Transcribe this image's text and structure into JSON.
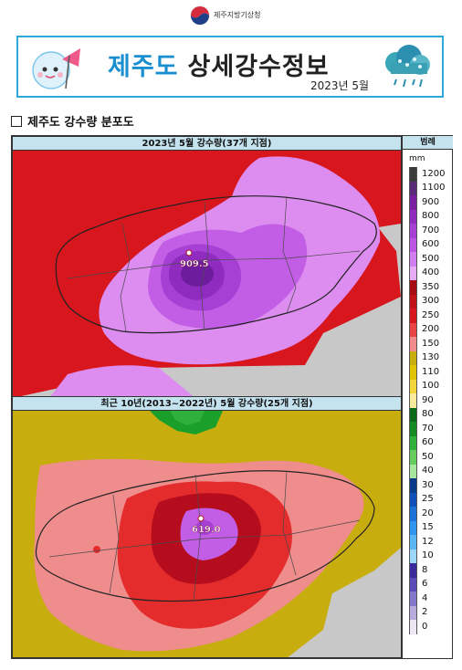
{
  "header": {
    "agency": "제주지방기상청"
  },
  "banner": {
    "title_highlight": "제주도",
    "title_rest": "상세강수정보",
    "date": "2023년 5월"
  },
  "section": {
    "title": "제주도 강수량 분포도"
  },
  "map_current": {
    "title": "2023년 5월 강수량(37개 지점)",
    "max_label": "909.5",
    "bands": [
      {
        "name": "background-gray",
        "color": "#c8c8c8",
        "level": 0
      },
      {
        "name": "red",
        "color": "#d7161d",
        "level": 1
      },
      {
        "name": "magenta-light",
        "color": "#dd8cf0",
        "level": 3
      },
      {
        "name": "violet",
        "color": "#c25ee6",
        "level": 4
      },
      {
        "name": "purple",
        "color": "#a640d4",
        "level": 5
      },
      {
        "name": "deep-purple",
        "color": "#8f2cbf",
        "level": 6
      },
      {
        "name": "darkest",
        "color": "#6d1c9d",
        "level": 7
      }
    ]
  },
  "map_normal": {
    "title": "최근 10년(2013~2022년) 5월 강수량(25개 지점)",
    "max_label": "619.0",
    "bands": [
      {
        "name": "background-gray",
        "color": "#c8c8c8",
        "level": 0
      },
      {
        "name": "gold",
        "color": "#c8ad0f",
        "level": 1
      },
      {
        "name": "salmon",
        "color": "#ef8c8c",
        "level": 2
      },
      {
        "name": "red",
        "color": "#e42c2c",
        "level": 3
      },
      {
        "name": "deep-red",
        "color": "#b50c1e",
        "level": 4
      },
      {
        "name": "violet",
        "color": "#c25ee6",
        "level": 5
      },
      {
        "name": "green",
        "color": "#1aa02a",
        "level": 6
      }
    ]
  },
  "legend": {
    "title": "범례",
    "unit": "mm",
    "items": [
      {
        "label": "1200",
        "color": "#3c3c3c"
      },
      {
        "label": "1100",
        "color": "#5a2a78"
      },
      {
        "label": "900",
        "color": "#7a1fa0"
      },
      {
        "label": "800",
        "color": "#8f2cbf"
      },
      {
        "label": "700",
        "color": "#a640d4"
      },
      {
        "label": "600",
        "color": "#bc55e4"
      },
      {
        "label": "500",
        "color": "#d17ef0"
      },
      {
        "label": "400",
        "color": "#e6aaf6"
      },
      {
        "label": "350",
        "color": "#a60c12"
      },
      {
        "label": "300",
        "color": "#c01218"
      },
      {
        "label": "250",
        "color": "#d7161d"
      },
      {
        "label": "200",
        "color": "#e84444"
      },
      {
        "label": "150",
        "color": "#f28c8c"
      },
      {
        "label": "130",
        "color": "#c8ad0f"
      },
      {
        "label": "110",
        "color": "#e2c400"
      },
      {
        "label": "100",
        "color": "#f4d63a"
      },
      {
        "label": "90",
        "color": "#f9ea9c"
      },
      {
        "label": "80",
        "color": "#0a6a1a"
      },
      {
        "label": "70",
        "color": "#138a22"
      },
      {
        "label": "60",
        "color": "#2fb03c"
      },
      {
        "label": "50",
        "color": "#66cc5e"
      },
      {
        "label": "40",
        "color": "#a8e6a0"
      },
      {
        "label": "30",
        "color": "#0a3a8a"
      },
      {
        "label": "25",
        "color": "#1050b8"
      },
      {
        "label": "20",
        "color": "#1d72d8"
      },
      {
        "label": "15",
        "color": "#2f95ee"
      },
      {
        "label": "12",
        "color": "#5ab6f4"
      },
      {
        "label": "10",
        "color": "#9cd6f8"
      },
      {
        "label": "8",
        "color": "#3a2a9c"
      },
      {
        "label": "6",
        "color": "#5a4ab8"
      },
      {
        "label": "4",
        "color": "#8478cc"
      },
      {
        "label": "2",
        "color": "#b6acdc"
      },
      {
        "label": "0",
        "color": "#ebe8f4"
      }
    ]
  }
}
